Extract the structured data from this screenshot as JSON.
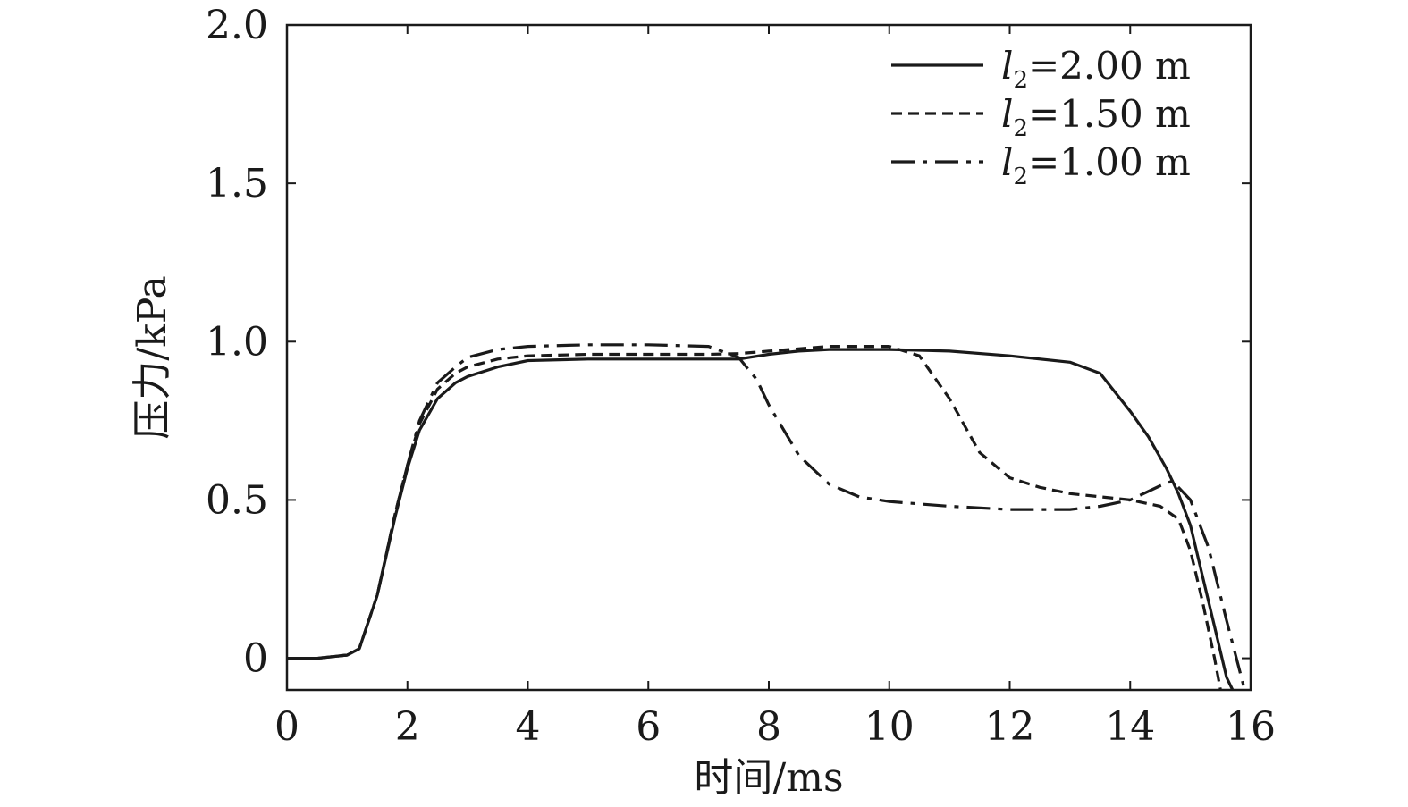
{
  "chart_data": {
    "type": "line",
    "title": "",
    "xlabel": "时间/ms",
    "ylabel": "压力/kPa",
    "xlim": [
      0,
      16
    ],
    "ylim": [
      -0.1,
      2.0
    ],
    "xticks": [
      0,
      2,
      4,
      6,
      8,
      10,
      12,
      14,
      16
    ],
    "xtick_labels": [
      "0",
      "2",
      "4",
      "6",
      "8",
      "10",
      "12",
      "14",
      "16"
    ],
    "yticks": [
      0,
      0.5,
      1.0,
      1.5,
      2.0
    ],
    "ytick_labels": [
      "0",
      "0.5",
      "1.0",
      "1.5",
      "2.0"
    ],
    "grid": false,
    "legend_position": "top-right",
    "series": [
      {
        "name": "l2=2.00 m",
        "legend_var": "l",
        "legend_sub": "2",
        "legend_value": "=2.00 m",
        "style": "solid",
        "x": [
          0,
          0.5,
          1.0,
          1.2,
          1.5,
          1.8,
          2.0,
          2.2,
          2.5,
          2.8,
          3.0,
          3.5,
          4.0,
          5.0,
          6.0,
          7.0,
          7.5,
          8.0,
          8.5,
          9.0,
          10.0,
          11.0,
          12.0,
          13.0,
          13.5,
          14.0,
          14.3,
          14.6,
          14.8,
          15.0,
          15.2,
          15.4,
          15.6,
          15.7
        ],
        "y": [
          0,
          0,
          0.01,
          0.03,
          0.2,
          0.45,
          0.6,
          0.72,
          0.82,
          0.87,
          0.89,
          0.92,
          0.94,
          0.945,
          0.945,
          0.945,
          0.945,
          0.96,
          0.97,
          0.975,
          0.975,
          0.97,
          0.955,
          0.935,
          0.9,
          0.78,
          0.7,
          0.6,
          0.52,
          0.42,
          0.26,
          0.1,
          -0.06,
          -0.1
        ]
      },
      {
        "name": "l2=1.50 m",
        "legend_var": "l",
        "legend_sub": "2",
        "legend_value": "=1.50 m",
        "style": "dashed",
        "x": [
          0,
          0.5,
          1.0,
          1.2,
          1.5,
          1.8,
          2.0,
          2.2,
          2.5,
          2.8,
          3.0,
          3.5,
          4.0,
          5.0,
          6.0,
          7.0,
          7.5,
          8.0,
          9.0,
          10.0,
          10.5,
          11.0,
          11.5,
          12.0,
          12.5,
          13.0,
          14.0,
          14.5,
          14.8,
          15.0,
          15.2,
          15.4,
          15.5
        ],
        "y": [
          0,
          0,
          0.01,
          0.03,
          0.2,
          0.46,
          0.61,
          0.74,
          0.85,
          0.9,
          0.92,
          0.945,
          0.955,
          0.96,
          0.96,
          0.96,
          0.962,
          0.97,
          0.985,
          0.985,
          0.955,
          0.82,
          0.65,
          0.57,
          0.54,
          0.52,
          0.5,
          0.48,
          0.44,
          0.34,
          0.18,
          0.0,
          -0.1
        ]
      },
      {
        "name": "l2=1.00 m",
        "legend_var": "l",
        "legend_sub": "2",
        "legend_value": "=1.00 m",
        "style": "dashdot",
        "x": [
          0,
          0.5,
          1.0,
          1.2,
          1.5,
          1.8,
          2.0,
          2.2,
          2.5,
          2.8,
          3.0,
          3.5,
          4.0,
          5.0,
          6.0,
          7.0,
          7.5,
          7.8,
          8.0,
          8.5,
          9.0,
          9.5,
          10.0,
          11.0,
          12.0,
          13.0,
          13.5,
          14.0,
          14.5,
          14.7,
          15.0,
          15.3,
          15.6,
          15.9
        ],
        "y": [
          0,
          0,
          0.01,
          0.03,
          0.2,
          0.46,
          0.61,
          0.75,
          0.87,
          0.92,
          0.95,
          0.975,
          0.985,
          0.99,
          0.99,
          0.985,
          0.95,
          0.88,
          0.8,
          0.64,
          0.55,
          0.51,
          0.495,
          0.48,
          0.47,
          0.47,
          0.48,
          0.5,
          0.545,
          0.56,
          0.5,
          0.35,
          0.12,
          -0.1
        ]
      }
    ]
  }
}
